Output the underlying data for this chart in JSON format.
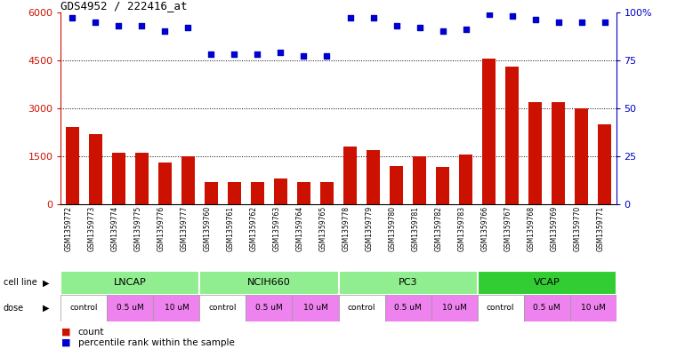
{
  "title": "GDS4952 / 222416_at",
  "samples": [
    "GSM1359772",
    "GSM1359773",
    "GSM1359774",
    "GSM1359775",
    "GSM1359776",
    "GSM1359777",
    "GSM1359760",
    "GSM1359761",
    "GSM1359762",
    "GSM1359763",
    "GSM1359764",
    "GSM1359765",
    "GSM1359778",
    "GSM1359779",
    "GSM1359780",
    "GSM1359781",
    "GSM1359782",
    "GSM1359783",
    "GSM1359766",
    "GSM1359767",
    "GSM1359768",
    "GSM1359769",
    "GSM1359770",
    "GSM1359771"
  ],
  "counts": [
    2400,
    2200,
    1600,
    1600,
    1300,
    1500,
    700,
    700,
    700,
    800,
    700,
    700,
    1800,
    1700,
    1200,
    1500,
    1150,
    1550,
    4550,
    4300,
    3200,
    3200,
    3000,
    2500
  ],
  "percentile_ranks": [
    97,
    95,
    93,
    93,
    90,
    92,
    78,
    78,
    78,
    79,
    77,
    77,
    97,
    97,
    93,
    92,
    90,
    91,
    99,
    98,
    96,
    95,
    95,
    95
  ],
  "cell_lines": [
    {
      "name": "LNCAP",
      "start": 0,
      "end": 6,
      "color": "#90EE90"
    },
    {
      "name": "NCIH660",
      "start": 6,
      "end": 12,
      "color": "#90EE90"
    },
    {
      "name": "PC3",
      "start": 12,
      "end": 18,
      "color": "#90EE90"
    },
    {
      "name": "VCAP",
      "start": 18,
      "end": 24,
      "color": "#32CD32"
    }
  ],
  "dose_groups": [
    {
      "label": "control",
      "color": "#FFFFFF"
    },
    {
      "label": "0.5 uM",
      "color": "#EE82EE"
    },
    {
      "label": "10 uM",
      "color": "#EE82EE"
    }
  ],
  "bar_color": "#CC1100",
  "dot_color": "#0000CC",
  "ylim_left": [
    0,
    6000
  ],
  "ylim_right": [
    0,
    100
  ],
  "yticks_left": [
    0,
    1500,
    3000,
    4500,
    6000
  ],
  "yticks_right": [
    0,
    25,
    50,
    75,
    100
  ],
  "background_color": "#FFFFFF"
}
